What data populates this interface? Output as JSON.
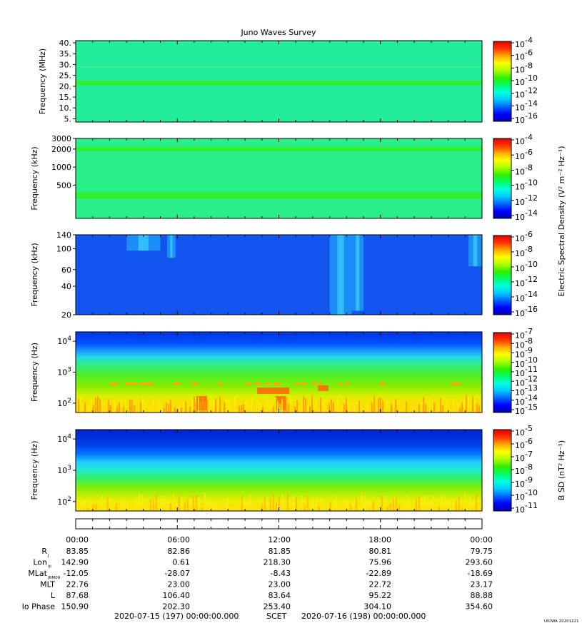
{
  "colors": {
    "colormap": [
      "#0000aa",
      "#0000ff",
      "#0066ff",
      "#00ccff",
      "#00ffdd",
      "#00ff66",
      "#33ee00",
      "#aaff00",
      "#ffff00",
      "#ffaa00",
      "#ff3300",
      "#dd0000"
    ],
    "panel1_background": "#22ee99",
    "panel2_background": "#2aee88",
    "panel3_background": "#1155ee",
    "panel4_mix": "blue top, cyan/green middle, yellow/orange bottom",
    "panel5_mix": "blue top, cyan middle, green, yellow bottom"
  },
  "chart_data": {
    "type": "heatmap",
    "title": "Juno Waves Survey",
    "x_tick_labels": [
      "00:00",
      "06:00",
      "12:00",
      "18:00",
      "00:00"
    ],
    "x_range_hours": [
      0,
      24
    ],
    "panels": [
      {
        "name": "panel-mhz",
        "ylabel": "Frequency (MHz)",
        "yscale": "linear",
        "ylim": [
          3.5,
          41
        ],
        "y_ticks": [
          {
            "value": 40,
            "label": "40."
          },
          {
            "value": 35,
            "label": "35."
          },
          {
            "value": 30,
            "label": "30."
          },
          {
            "value": 25,
            "label": "25."
          },
          {
            "value": 20,
            "label": "20."
          },
          {
            "value": 15,
            "label": "15."
          },
          {
            "value": 10,
            "label": "10."
          },
          {
            "value": 5,
            "label": "5."
          }
        ],
        "band_features": [
          {
            "freq_low": 20.5,
            "freq_high": 22.5,
            "description": "narrow enhanced band"
          }
        ],
        "colorbar": {
          "labels": [
            {
              "base": "10",
              "exp": "-4"
            },
            {
              "base": "10",
              "exp": "-6"
            },
            {
              "base": "10",
              "exp": "-8"
            },
            {
              "base": "10",
              "exp": "-10"
            },
            {
              "base": "10",
              "exp": "-12"
            },
            {
              "base": "10",
              "exp": "-14"
            },
            {
              "base": "10",
              "exp": "-16"
            }
          ]
        }
      },
      {
        "name": "panel-khz-high",
        "ylabel": "Frequency (kHz)",
        "yscale": "log",
        "ylim": [
          140,
          3000
        ],
        "y_ticks": [
          {
            "value": 3000,
            "label": "3000"
          },
          {
            "value": 2000,
            "label": "2000"
          },
          {
            "value": 1000,
            "label": "1000"
          },
          {
            "value": 500,
            "label": "500"
          }
        ],
        "band_features": [
          {
            "freq_low": 300,
            "freq_high": 380,
            "description": "enhanced band"
          },
          {
            "freq_low": 1850,
            "freq_high": 2150,
            "description": "enhanced band"
          }
        ],
        "colorbar": {
          "labels": [
            {
              "base": "10",
              "exp": "-4"
            },
            {
              "base": "10",
              "exp": "-6"
            },
            {
              "base": "10",
              "exp": "-8"
            },
            {
              "base": "10",
              "exp": "-10"
            },
            {
              "base": "10",
              "exp": "-12"
            },
            {
              "base": "10",
              "exp": "-14"
            }
          ]
        }
      },
      {
        "name": "panel-khz-low",
        "ylabel": "Frequency (kHz)",
        "yscale": "log",
        "ylim": [
          20,
          140
        ],
        "y_ticks": [
          {
            "value": 140,
            "label": "140"
          },
          {
            "value": 100,
            "label": "100"
          },
          {
            "value": 60,
            "label": "60"
          },
          {
            "value": 40,
            "label": "40"
          },
          {
            "value": 20,
            "label": "20"
          }
        ],
        "emission_features": [
          {
            "hour_start": 3.0,
            "hour_end": 5.0,
            "freq_low": 95,
            "freq_high": 140
          },
          {
            "hour_start": 5.4,
            "hour_end": 5.9,
            "freq_low": 80,
            "freq_high": 140
          },
          {
            "hour_start": 15.0,
            "hour_end": 16.3,
            "freq_low": 20,
            "freq_high": 140
          },
          {
            "hour_start": 16.3,
            "hour_end": 17.0,
            "freq_low": 22,
            "freq_high": 140
          },
          {
            "hour_start": 23.2,
            "hour_end": 24.0,
            "freq_low": 65,
            "freq_high": 140
          }
        ],
        "colorbar": {
          "title": "Electric Spectral Density (V² m⁻² Hz⁻¹)",
          "labels": [
            {
              "base": "10",
              "exp": "-6"
            },
            {
              "base": "10",
              "exp": "-8"
            },
            {
              "base": "10",
              "exp": "-10"
            },
            {
              "base": "10",
              "exp": "-12"
            },
            {
              "base": "10",
              "exp": "-14"
            },
            {
              "base": "10",
              "exp": "-16"
            }
          ]
        }
      },
      {
        "name": "panel-hz-electric",
        "ylabel": "Frequency (Hz)",
        "yscale": "log",
        "ylim": [
          50,
          20000
        ],
        "y_ticks": [
          {
            "value": 10000,
            "base": "10",
            "exp": "4"
          },
          {
            "value": 1000,
            "base": "10",
            "exp": "3"
          },
          {
            "value": 100,
            "base": "10",
            "exp": "2"
          }
        ],
        "colorbar": {
          "labels": [
            {
              "base": "10",
              "exp": "-7"
            },
            {
              "base": "10",
              "exp": "-8"
            },
            {
              "base": "10",
              "exp": "-9"
            },
            {
              "base": "10",
              "exp": "-10"
            },
            {
              "base": "10",
              "exp": "-11"
            },
            {
              "base": "10",
              "exp": "-12"
            },
            {
              "base": "10",
              "exp": "-13"
            },
            {
              "base": "10",
              "exp": "-14"
            },
            {
              "base": "10",
              "exp": "-15"
            }
          ]
        }
      },
      {
        "name": "panel-hz-magnetic",
        "ylabel": "Frequency (Hz)",
        "yscale": "log",
        "ylim": [
          50,
          20000
        ],
        "y_ticks": [
          {
            "value": 10000,
            "base": "10",
            "exp": "4"
          },
          {
            "value": 1000,
            "base": "10",
            "exp": "3"
          },
          {
            "value": 100,
            "base": "10",
            "exp": "2"
          }
        ],
        "colorbar": {
          "title": "B SD (nT² Hz⁻¹)",
          "labels": [
            {
              "base": "10",
              "exp": "-5"
            },
            {
              "base": "10",
              "exp": "-6"
            },
            {
              "base": "10",
              "exp": "-7"
            },
            {
              "base": "10",
              "exp": "-8"
            },
            {
              "base": "10",
              "exp": "-9"
            },
            {
              "base": "10",
              "exp": "-10"
            },
            {
              "base": "10",
              "exp": "-11"
            }
          ]
        }
      }
    ],
    "ephemeris": {
      "rows": [
        {
          "label": "R",
          "sub": "J",
          "values": [
            "83.85",
            "82.86",
            "81.85",
            "80.81",
            "79.75"
          ]
        },
        {
          "label": "Lon",
          "sub": "III",
          "values": [
            "142.90",
            "0.61",
            "218.30",
            "75.96",
            "293.60"
          ]
        },
        {
          "label": "MLat",
          "sub": "JRM09",
          "values": [
            "-12.05",
            "-28.07",
            "-8.43",
            "-22.89",
            "-18.69"
          ]
        },
        {
          "label": "MLT",
          "sub": "",
          "values": [
            "22.76",
            "23.00",
            "23.00",
            "22.72",
            "23.17"
          ]
        },
        {
          "label": "L",
          "sub": "",
          "values": [
            "87.68",
            "106.40",
            "83.64",
            "95.22",
            "88.88"
          ]
        },
        {
          "label": "Io Phase",
          "sub": "",
          "values": [
            "150.90",
            "202.30",
            "253.40",
            "304.10",
            "354.60"
          ]
        }
      ]
    },
    "footer": {
      "start": "2020-07-15 (197) 00:00:00.000",
      "scet": "SCET",
      "end": "2020-07-16 (198) 00:00:00.000",
      "credit": "UIOWA 20201221"
    }
  }
}
